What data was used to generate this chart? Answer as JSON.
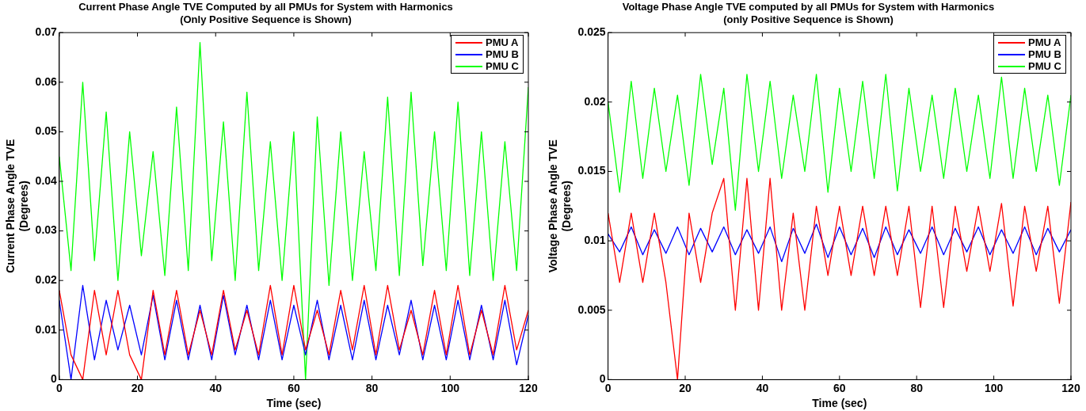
{
  "chart_data": [
    {
      "type": "line",
      "title": "Current Phase Angle TVE Computed by all PMUs for System with Harmonics\n(Only Positive Sequence is Shown)",
      "xlabel": "Time (sec)",
      "ylabel": "Current Phase Angle TVE\n(Degrees)",
      "legend": "top right",
      "xlim": [
        0,
        120
      ],
      "xticks": [
        0,
        20,
        40,
        60,
        80,
        100,
        120
      ],
      "ylim": [
        0,
        0.07
      ],
      "yticks": [
        0,
        0.01,
        0.02,
        0.03,
        0.04,
        0.05,
        0.06,
        0.07
      ],
      "x": [
        0,
        3,
        6,
        9,
        12,
        15,
        18,
        21,
        24,
        27,
        30,
        33,
        36,
        39,
        42,
        45,
        48,
        51,
        54,
        57,
        60,
        63,
        66,
        69,
        72,
        75,
        78,
        81,
        84,
        87,
        90,
        93,
        96,
        99,
        102,
        105,
        108,
        111,
        114,
        117,
        120
      ],
      "series": [
        {
          "name": "PMU A",
          "color": "#ff0000",
          "values": [
            0.018,
            0.005,
            0,
            0.018,
            0.005,
            0.018,
            0.005,
            0,
            0.018,
            0.005,
            0.018,
            0.005,
            0.014,
            0.005,
            0.018,
            0.006,
            0.014,
            0.005,
            0.019,
            0.005,
            0.019,
            0.006,
            0.014,
            0.005,
            0.018,
            0.006,
            0.019,
            0.005,
            0.019,
            0.006,
            0.014,
            0.005,
            0.018,
            0.005,
            0.019,
            0.005,
            0.014,
            0.005,
            0.019,
            0.006,
            0.014
          ]
        },
        {
          "name": "PMU B",
          "color": "#0000ff",
          "values": [
            0.016,
            0,
            0.019,
            0.004,
            0.016,
            0.006,
            0.015,
            0.005,
            0.017,
            0.004,
            0.016,
            0.004,
            0.015,
            0.004,
            0.017,
            0.005,
            0.015,
            0.004,
            0.016,
            0.004,
            0.015,
            0.005,
            0.016,
            0.004,
            0.015,
            0.004,
            0.016,
            0.004,
            0.015,
            0.005,
            0.016,
            0.004,
            0.015,
            0.004,
            0.016,
            0.004,
            0.015,
            0.004,
            0.016,
            0.003,
            0.013
          ]
        },
        {
          "name": "PMU C",
          "color": "#00ff00",
          "values": [
            0.045,
            0.022,
            0.06,
            0.024,
            0.054,
            0.02,
            0.05,
            0.025,
            0.046,
            0.021,
            0.055,
            0.022,
            0.068,
            0.024,
            0.052,
            0.02,
            0.058,
            0.022,
            0.048,
            0.02,
            0.05,
            0,
            0.053,
            0.019,
            0.05,
            0.02,
            0.046,
            0.022,
            0.057,
            0.021,
            0.058,
            0.023,
            0.05,
            0.022,
            0.056,
            0.021,
            0.05,
            0.02,
            0.048,
            0.022,
            0.059
          ]
        }
      ]
    },
    {
      "type": "line",
      "title": "Voltage Phase Angle TVE computed by all PMUs for System with Harmonics\n(only Positive Sequence is Shown)",
      "xlabel": "Time (sec)",
      "ylabel": "Voltage Phase Angle TVE\n(Degrees)",
      "legend": "top right",
      "xlim": [
        0,
        120
      ],
      "xticks": [
        0,
        20,
        40,
        60,
        80,
        100,
        120
      ],
      "ylim": [
        0,
        0.025
      ],
      "yticks": [
        0,
        0.005,
        0.01,
        0.015,
        0.02,
        0.025
      ],
      "x": [
        0,
        3,
        6,
        9,
        12,
        15,
        18,
        21,
        24,
        27,
        30,
        33,
        36,
        39,
        42,
        45,
        48,
        51,
        54,
        57,
        60,
        63,
        66,
        69,
        72,
        75,
        78,
        81,
        84,
        87,
        90,
        93,
        96,
        99,
        102,
        105,
        108,
        111,
        114,
        117,
        120
      ],
      "series": [
        {
          "name": "PMU A",
          "color": "#ff0000",
          "values": [
            0.012,
            0.007,
            0.012,
            0.007,
            0.012,
            0.007,
            0,
            0.012,
            0.007,
            0.012,
            0.0145,
            0.005,
            0.0145,
            0.005,
            0.0145,
            0.005,
            0.012,
            0.005,
            0.0125,
            0.0075,
            0.0125,
            0.0075,
            0.0125,
            0.0075,
            0.0125,
            0.0075,
            0.0125,
            0.0052,
            0.0125,
            0.0052,
            0.0125,
            0.0078,
            0.0125,
            0.0078,
            0.0127,
            0.0053,
            0.0125,
            0.0078,
            0.0125,
            0.0055,
            0.0128
          ]
        },
        {
          "name": "PMU B",
          "color": "#0000ff",
          "values": [
            0.0105,
            0.0092,
            0.011,
            0.009,
            0.0108,
            0.0091,
            0.011,
            0.009,
            0.0109,
            0.0092,
            0.011,
            0.009,
            0.0108,
            0.0091,
            0.011,
            0.0085,
            0.0109,
            0.0091,
            0.0112,
            0.0088,
            0.011,
            0.009,
            0.0109,
            0.0088,
            0.011,
            0.009,
            0.0108,
            0.0091,
            0.011,
            0.009,
            0.0109,
            0.0092,
            0.011,
            0.009,
            0.0108,
            0.0091,
            0.011,
            0.009,
            0.0109,
            0.0092,
            0.0108
          ]
        },
        {
          "name": "PMU C",
          "color": "#00ff00",
          "values": [
            0.02,
            0.0135,
            0.0215,
            0.0145,
            0.021,
            0.015,
            0.0205,
            0.014,
            0.022,
            0.0155,
            0.021,
            0.0122,
            0.022,
            0.015,
            0.0215,
            0.0145,
            0.0205,
            0.015,
            0.022,
            0.0135,
            0.021,
            0.015,
            0.0215,
            0.0145,
            0.022,
            0.0136,
            0.021,
            0.015,
            0.0205,
            0.0145,
            0.021,
            0.015,
            0.0205,
            0.0145,
            0.0218,
            0.0145,
            0.021,
            0.015,
            0.0205,
            0.014,
            0.0205
          ]
        }
      ]
    }
  ]
}
